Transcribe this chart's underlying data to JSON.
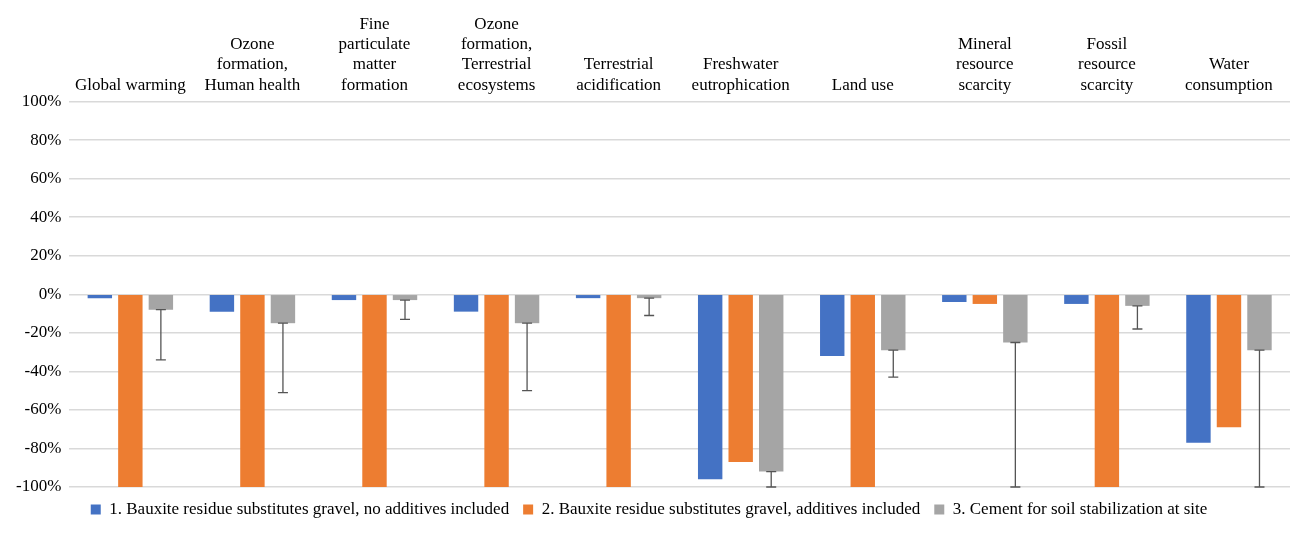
{
  "chart_data": {
    "type": "bar",
    "categories": [
      "Global warming",
      "Ozone formation, Human health",
      "Fine particulate matter formation",
      "Ozone formation, Terrestrial ecosystems",
      "Terrestrial acidification",
      "Freshwater eutrophication",
      "Land use",
      "Mineral resource scarcity",
      "Fossil resource scarcity",
      "Water consumption"
    ],
    "series": [
      {
        "name": "1. Bauxite residue substitutes gravel, no additives included",
        "color": "#4472c4",
        "values": [
          -2,
          -9,
          -3,
          -9,
          -2,
          -96,
          -32,
          -4,
          -5,
          -77
        ]
      },
      {
        "name": "2. Bauxite residue substitutes gravel, additives included",
        "color": "#ed7d31",
        "values": [
          -100,
          -100,
          -100,
          -100,
          -100,
          -87,
          -100,
          -5,
          -100,
          -69
        ]
      },
      {
        "name": "3. Cement for soil stabilization at site",
        "color": "#a5a5a5",
        "values": [
          -8,
          -15,
          -3,
          -15,
          -2,
          -92,
          -29,
          -25,
          -6,
          -29
        ],
        "errors": [
          [
            -34,
            -8
          ],
          [
            -51,
            -15
          ],
          [
            -13,
            -3
          ],
          [
            -50,
            -15
          ],
          [
            -11,
            -2
          ],
          [
            -100,
            -92
          ],
          [
            -43,
            -29
          ],
          [
            -100,
            -25
          ],
          [
            -18,
            -6
          ],
          [
            -100,
            -29
          ]
        ]
      }
    ],
    "ylim": [
      -100,
      100
    ],
    "yticks": [
      {
        "value": -100,
        "label": "-100%"
      },
      {
        "value": -80,
        "label": "-80%"
      },
      {
        "value": -60,
        "label": "-60%"
      },
      {
        "value": -40,
        "label": "-40%"
      },
      {
        "value": -20,
        "label": "-20%"
      },
      {
        "value": 0,
        "label": "0%"
      },
      {
        "value": 20,
        "label": "20%"
      },
      {
        "value": 40,
        "label": "40%"
      },
      {
        "value": 60,
        "label": "60%"
      },
      {
        "value": 80,
        "label": "80%"
      },
      {
        "value": 100,
        "label": "100%"
      }
    ],
    "grid": "y",
    "legend": "bottom"
  }
}
